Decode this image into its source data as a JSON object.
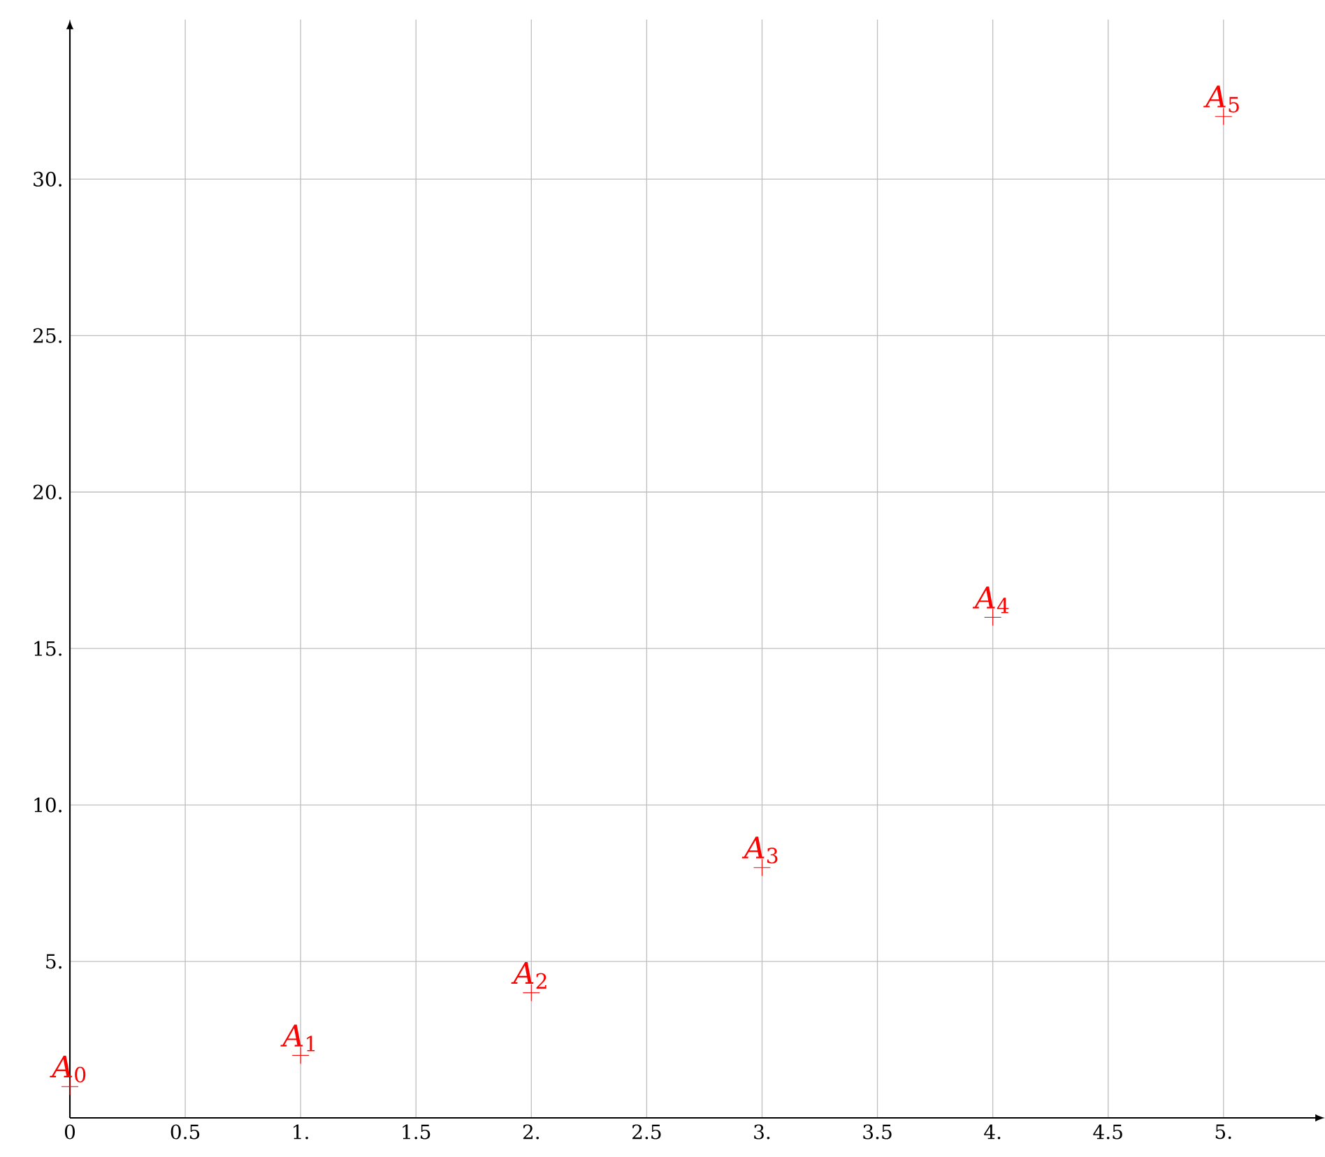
{
  "chart_data": {
    "type": "scatter",
    "x": [
      0,
      1,
      2,
      3,
      4,
      5
    ],
    "values": [
      1,
      2,
      4,
      8,
      16,
      32
    ],
    "color": "#ff0000",
    "marker": "cross",
    "grid": true,
    "xlim": [
      0,
      5.44
    ],
    "ylim": [
      0,
      35.1
    ],
    "xticks": [
      0,
      {
        "value": 0.5,
        "label": "0.5"
      },
      {
        "value": 1,
        "label": "1."
      },
      {
        "value": 1.5,
        "label": "1.5"
      },
      {
        "value": 2,
        "label": "2."
      },
      {
        "value": 2.5,
        "label": "2.5"
      },
      {
        "value": 3,
        "label": "3."
      },
      {
        "value": 3.5,
        "label": "3.5"
      },
      {
        "value": 4,
        "label": "4."
      },
      {
        "value": 4.5,
        "label": "4.5"
      },
      {
        "value": 5,
        "label": "5."
      }
    ],
    "yticks": [
      {
        "value": 5,
        "label": "5."
      },
      {
        "value": 10,
        "label": "10."
      },
      {
        "value": 15,
        "label": "15."
      },
      {
        "value": 20,
        "label": "20."
      },
      {
        "value": 25,
        "label": "25."
      },
      {
        "value": 30,
        "label": "30."
      }
    ],
    "annotations": [
      {
        "text": "*A*$_{0}$",
        "x": 0,
        "y": 1
      },
      {
        "text": "*A*$_{1}$",
        "x": 1,
        "y": 2
      },
      {
        "text": "*A*$_{2}$",
        "x": 2,
        "y": 4
      },
      {
        "text": "*A*$_{3}$",
        "x": 3,
        "y": 8
      },
      {
        "text": "*A*$_{4}$",
        "x": 4,
        "y": 16
      },
      {
        "text": "*A*$_{5}$",
        "x": 5,
        "y": 32
      }
    ]
  }
}
